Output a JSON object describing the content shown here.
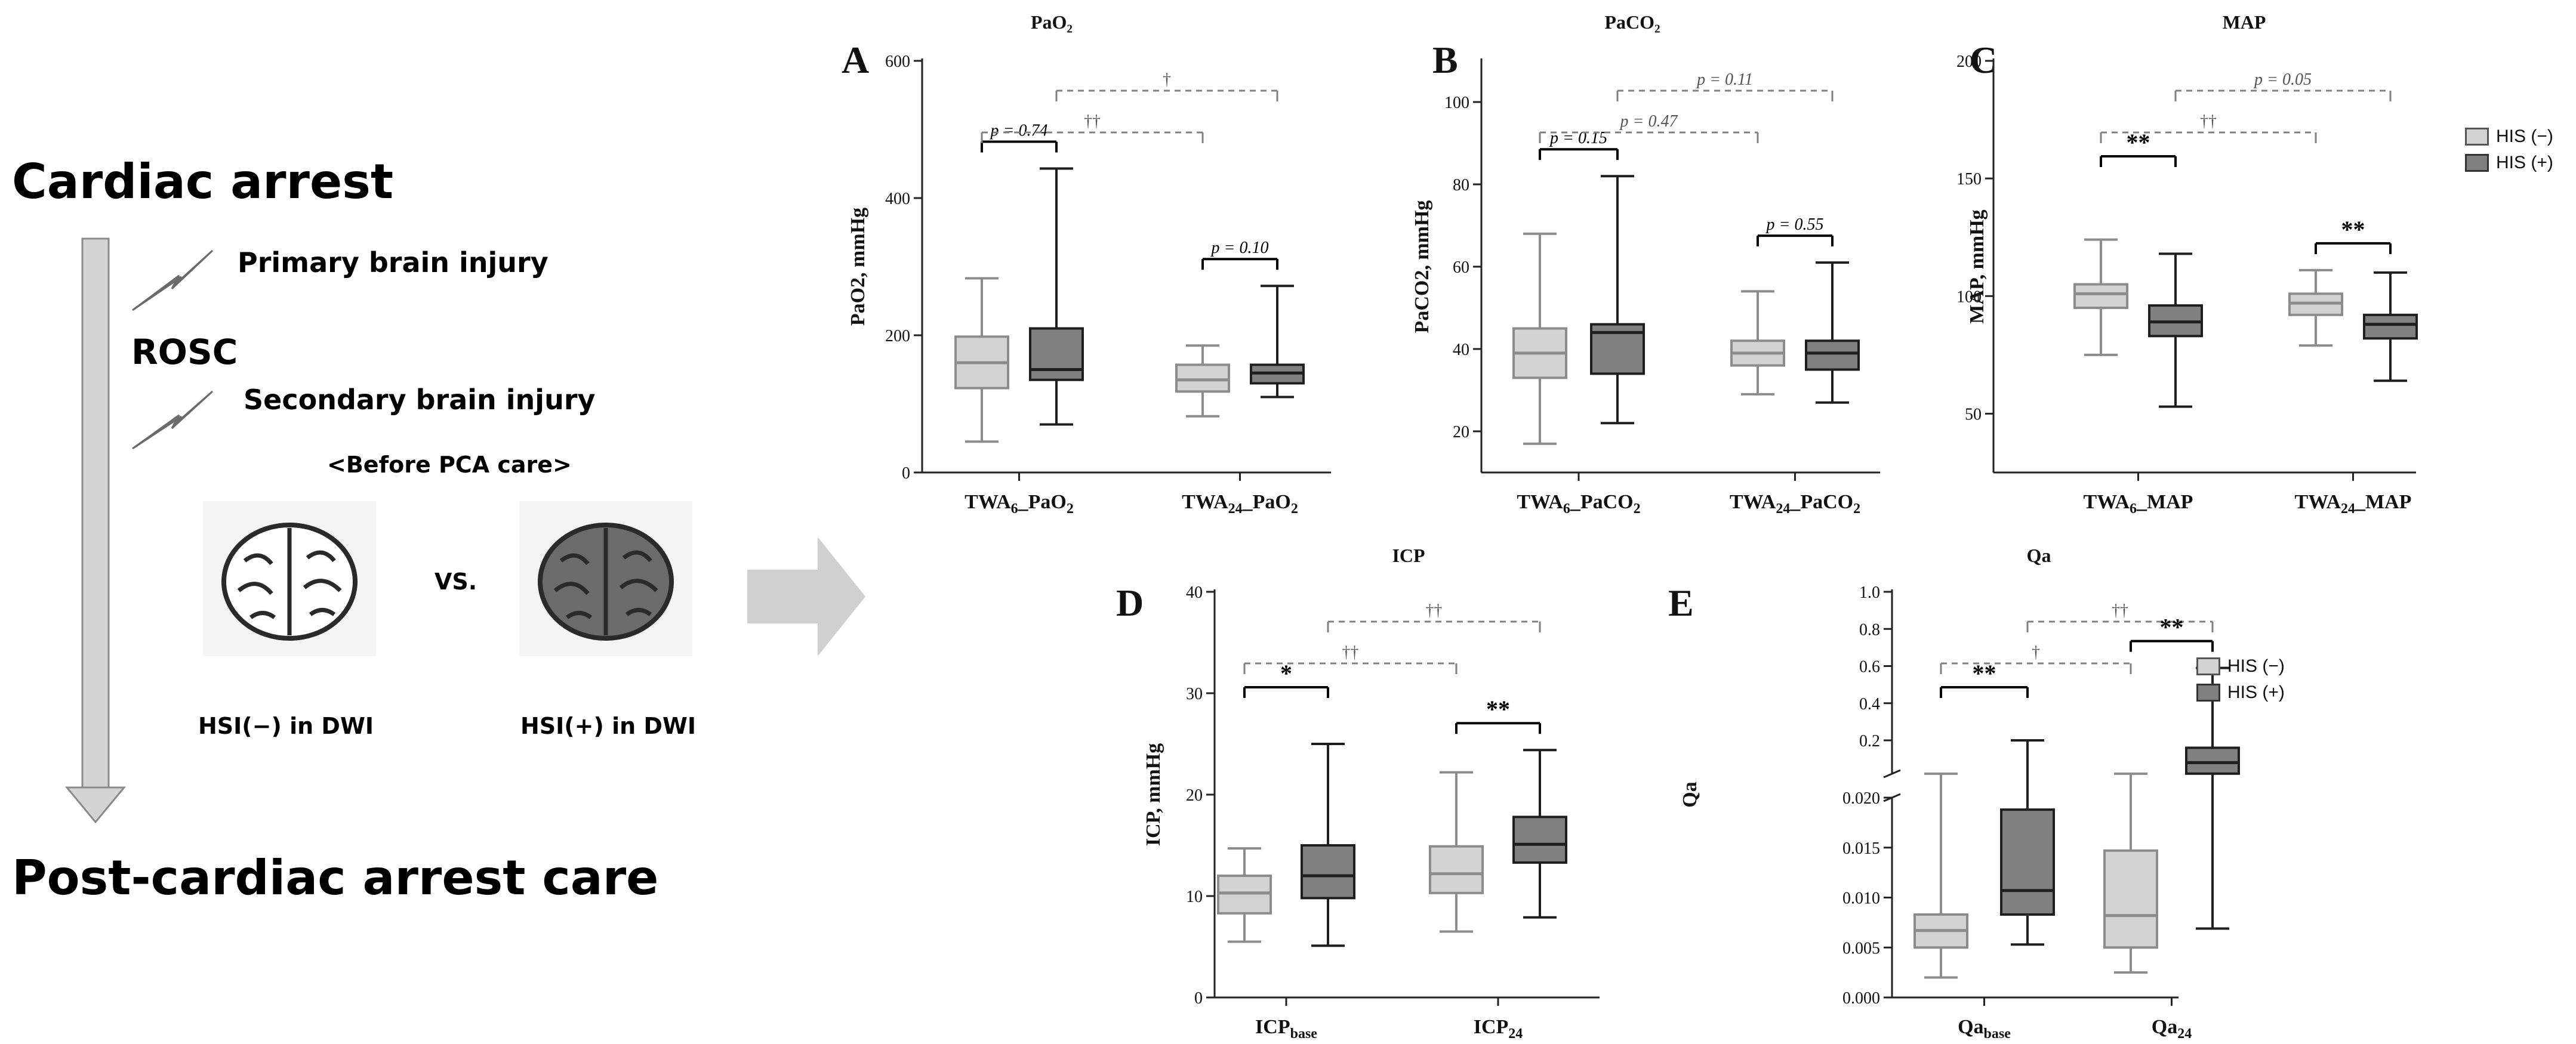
{
  "scheme": {
    "title_top": "Cardiac arrest",
    "primary": "Primary brain injury",
    "rosc": "ROSC",
    "secondary": "Secondary brain injury",
    "before": "<Before PCA care>",
    "vs": "VS.",
    "neg_label": "HSI(−) in DWI",
    "pos_label": "HSI(+) in DWI",
    "title_bottom": "Post-cardiac arrest care"
  },
  "colors": {
    "light": "#d3d3d3",
    "dark": "#808080",
    "sig": "#000000",
    "trend": "#808080"
  },
  "legend": {
    "neg": "HIS (−)",
    "pos": "HIS (+)"
  },
  "chart_data": [
    {
      "letter": "A",
      "title": "PaO₂",
      "type": "box",
      "ylabel": "PaO2, mmHg",
      "ylim": [
        0,
        600
      ],
      "yticks": [
        0,
        200,
        400,
        600
      ],
      "groups": [
        {
          "main": "TWA",
          "sub": "6",
          "tail": "_PaO",
          "sub2": "2",
          "boxes": [
            {
              "series": "HIS (−)",
              "min": 45,
              "q1": 123,
              "median": 160,
              "q3": 198,
              "max": 283
            },
            {
              "series": "HIS (+)",
              "min": 70,
              "q1": 135,
              "median": 150,
              "q3": 210,
              "max": 443
            }
          ]
        },
        {
          "main": "TWA",
          "sub": "24",
          "tail": "_PaO",
          "sub2": "2",
          "boxes": [
            {
              "series": "HIS (−)",
              "min": 82,
              "q1": 118,
              "median": 135,
              "q3": 157,
              "max": 185
            },
            {
              "series": "HIS (+)",
              "min": 110,
              "q1": 130,
              "median": 145,
              "q3": 157,
              "max": 272
            }
          ]
        }
      ],
      "annotations": [
        {
          "from": [
            0,
            0
          ],
          "to": [
            0,
            1
          ],
          "text": "p = 0.74",
          "style": "sig",
          "level": 0
        },
        {
          "from": [
            0,
            0
          ],
          "to": [
            1,
            0
          ],
          "text": "††",
          "style": "trend",
          "level": 1
        },
        {
          "from": [
            0,
            1
          ],
          "to": [
            1,
            1
          ],
          "text": "†",
          "style": "trend",
          "level": 2
        },
        {
          "from": [
            1,
            0
          ],
          "to": [
            1,
            1
          ],
          "text": "p = 0.10",
          "style": "sig",
          "level": -1
        }
      ]
    },
    {
      "letter": "B",
      "title": "PaCO₂",
      "type": "box",
      "ylabel": "PaCO2, mmHg",
      "ylim": [
        10,
        110
      ],
      "yticks": [
        20,
        40,
        60,
        80,
        100
      ],
      "groups": [
        {
          "main": "TWA",
          "sub": "6",
          "tail": "_PaCO",
          "sub2": "2",
          "boxes": [
            {
              "series": "HIS (−)",
              "min": 17,
              "q1": 33,
              "median": 39,
              "q3": 45,
              "max": 68
            },
            {
              "series": "HIS (+)",
              "min": 22,
              "q1": 34,
              "median": 44,
              "q3": 46,
              "max": 82
            }
          ]
        },
        {
          "main": "TWA",
          "sub": "24",
          "tail": "_PaCO",
          "sub2": "2",
          "boxes": [
            {
              "series": "HIS (−)",
              "min": 29,
              "q1": 36,
              "median": 39,
              "q3": 42,
              "max": 54
            },
            {
              "series": "HIS (+)",
              "min": 27,
              "q1": 35,
              "median": 39,
              "q3": 42,
              "max": 61
            }
          ]
        }
      ],
      "annotations": [
        {
          "from": [
            0,
            0
          ],
          "to": [
            0,
            1
          ],
          "text": "p = 0.15",
          "style": "sig",
          "level": 0
        },
        {
          "from": [
            0,
            0
          ],
          "to": [
            1,
            0
          ],
          "text": "p = 0.47",
          "style": "trend",
          "level": 1
        },
        {
          "from": [
            0,
            1
          ],
          "to": [
            1,
            1
          ],
          "text": "p = 0.11",
          "style": "trend",
          "level": 2
        },
        {
          "from": [
            1,
            0
          ],
          "to": [
            1,
            1
          ],
          "text": "p = 0.55",
          "style": "sig",
          "level": -1
        }
      ]
    },
    {
      "letter": "C",
      "title": "MAP",
      "type": "box",
      "ylabel": "MAP, mmHg",
      "ylim": [
        25,
        200
      ],
      "yticks": [
        50,
        100,
        150,
        200
      ],
      "groups": [
        {
          "main": "TWA",
          "sub": "6",
          "tail": "_MAP",
          "sub2": "",
          "boxes": [
            {
              "series": "HIS (−)",
              "min": 75,
              "q1": 95,
              "median": 101,
              "q3": 105,
              "max": 124
            },
            {
              "series": "HIS (+)",
              "min": 53,
              "q1": 83,
              "median": 89,
              "q3": 96,
              "max": 118
            }
          ]
        },
        {
          "main": "TWA",
          "sub": "24",
          "tail": "_MAP",
          "sub2": "",
          "boxes": [
            {
              "series": "HIS (−)",
              "min": 79,
              "q1": 92,
              "median": 97,
              "q3": 101,
              "max": 111
            },
            {
              "series": "HIS (+)",
              "min": 64,
              "q1": 82,
              "median": 88,
              "q3": 92,
              "max": 110
            }
          ]
        }
      ],
      "annotations": [
        {
          "from": [
            0,
            0
          ],
          "to": [
            0,
            1
          ],
          "text": "**",
          "style": "sig",
          "level": 0
        },
        {
          "from": [
            0,
            0
          ],
          "to": [
            1,
            0
          ],
          "text": "††",
          "style": "trend",
          "level": 1
        },
        {
          "from": [
            0,
            1
          ],
          "to": [
            1,
            1
          ],
          "text": "p = 0.05",
          "style": "trend",
          "level": 2
        },
        {
          "from": [
            1,
            0
          ],
          "to": [
            1,
            1
          ],
          "text": "**",
          "style": "sig",
          "level": -1
        }
      ]
    },
    {
      "letter": "D",
      "title": "ICP",
      "type": "box",
      "ylabel": "ICP, mmHg",
      "ylim": [
        0,
        40
      ],
      "yticks": [
        0,
        10,
        20,
        30,
        40
      ],
      "groups": [
        {
          "main": "ICP",
          "sub": "base",
          "tail": "",
          "sub2": "",
          "boxes": [
            {
              "series": "HIS (−)",
              "min": 5.5,
              "q1": 8.3,
              "median": 10.3,
              "q3": 12,
              "max": 14.7
            },
            {
              "series": "HIS (+)",
              "min": 5.1,
              "q1": 9.8,
              "median": 12,
              "q3": 15,
              "max": 25
            }
          ]
        },
        {
          "main": "ICP",
          "sub": "24",
          "tail": "",
          "sub2": "",
          "boxes": [
            {
              "series": "HIS (−)",
              "min": 6.5,
              "q1": 10.3,
              "median": 12.2,
              "q3": 14.9,
              "max": 22.2
            },
            {
              "series": "HIS (+)",
              "min": 7.9,
              "q1": 13.3,
              "median": 15.1,
              "q3": 17.8,
              "max": 24.4
            }
          ]
        }
      ],
      "annotations": [
        {
          "from": [
            0,
            0
          ],
          "to": [
            0,
            1
          ],
          "text": "*",
          "style": "sig",
          "level": 0
        },
        {
          "from": [
            0,
            0
          ],
          "to": [
            1,
            0
          ],
          "text": "††",
          "style": "trend",
          "level": 1
        },
        {
          "from": [
            0,
            1
          ],
          "to": [
            1,
            1
          ],
          "text": "††",
          "style": "trend",
          "level": 2
        },
        {
          "from": [
            1,
            0
          ],
          "to": [
            1,
            1
          ],
          "text": "**",
          "style": "sig",
          "level": -1
        }
      ]
    },
    {
      "letter": "E",
      "title": "Qa",
      "type": "box-broken-axis",
      "ylabel": "Qa",
      "lower_ylim": [
        0,
        0.02
      ],
      "lower_yticks": [
        "0.000",
        "0.005",
        "0.010",
        "0.015",
        "0.020"
      ],
      "upper_ylim": [
        0,
        1.0
      ],
      "upper_yticks": [
        "0.2",
        "0.4",
        "0.6",
        "0.8",
        "1.0"
      ],
      "groups": [
        {
          "main": "Qa",
          "sub": "base",
          "tail": "",
          "sub2": "",
          "boxes": [
            {
              "series": "HIS (−)",
              "min": 0.002,
              "q1": 0.005,
              "median": 0.0067,
              "q3": 0.0083,
              "max": 0.0206
            },
            {
              "series": "HIS (+)",
              "min": 0.0053,
              "q1": 0.0083,
              "median": 0.0107,
              "q3": 0.0188,
              "max": 0.2
            }
          ]
        },
        {
          "main": "Qa",
          "sub": "24",
          "tail": "",
          "sub2": "",
          "boxes": [
            {
              "series": "HIS (−)",
              "min": 0.0025,
              "q1": 0.005,
              "median": 0.0082,
              "q3": 0.0147,
              "max": 0.0206
            },
            {
              "series": "HIS (+)",
              "min": 0.0069,
              "q1": 0.0207,
              "median": 0.08,
              "q3": 0.16,
              "max": 0.59
            }
          ]
        }
      ],
      "annotations": [
        {
          "from": [
            0,
            0
          ],
          "to": [
            0,
            1
          ],
          "text": "**",
          "style": "sig",
          "level": 0
        },
        {
          "from": [
            0,
            0
          ],
          "to": [
            1,
            0
          ],
          "text": "†",
          "style": "trend",
          "level": 1
        },
        {
          "from": [
            0,
            1
          ],
          "to": [
            1,
            1
          ],
          "text": "††",
          "style": "trend",
          "level": 2
        },
        {
          "from": [
            1,
            0
          ],
          "to": [
            1,
            1
          ],
          "text": "**",
          "style": "sig",
          "level": -1
        }
      ]
    }
  ]
}
